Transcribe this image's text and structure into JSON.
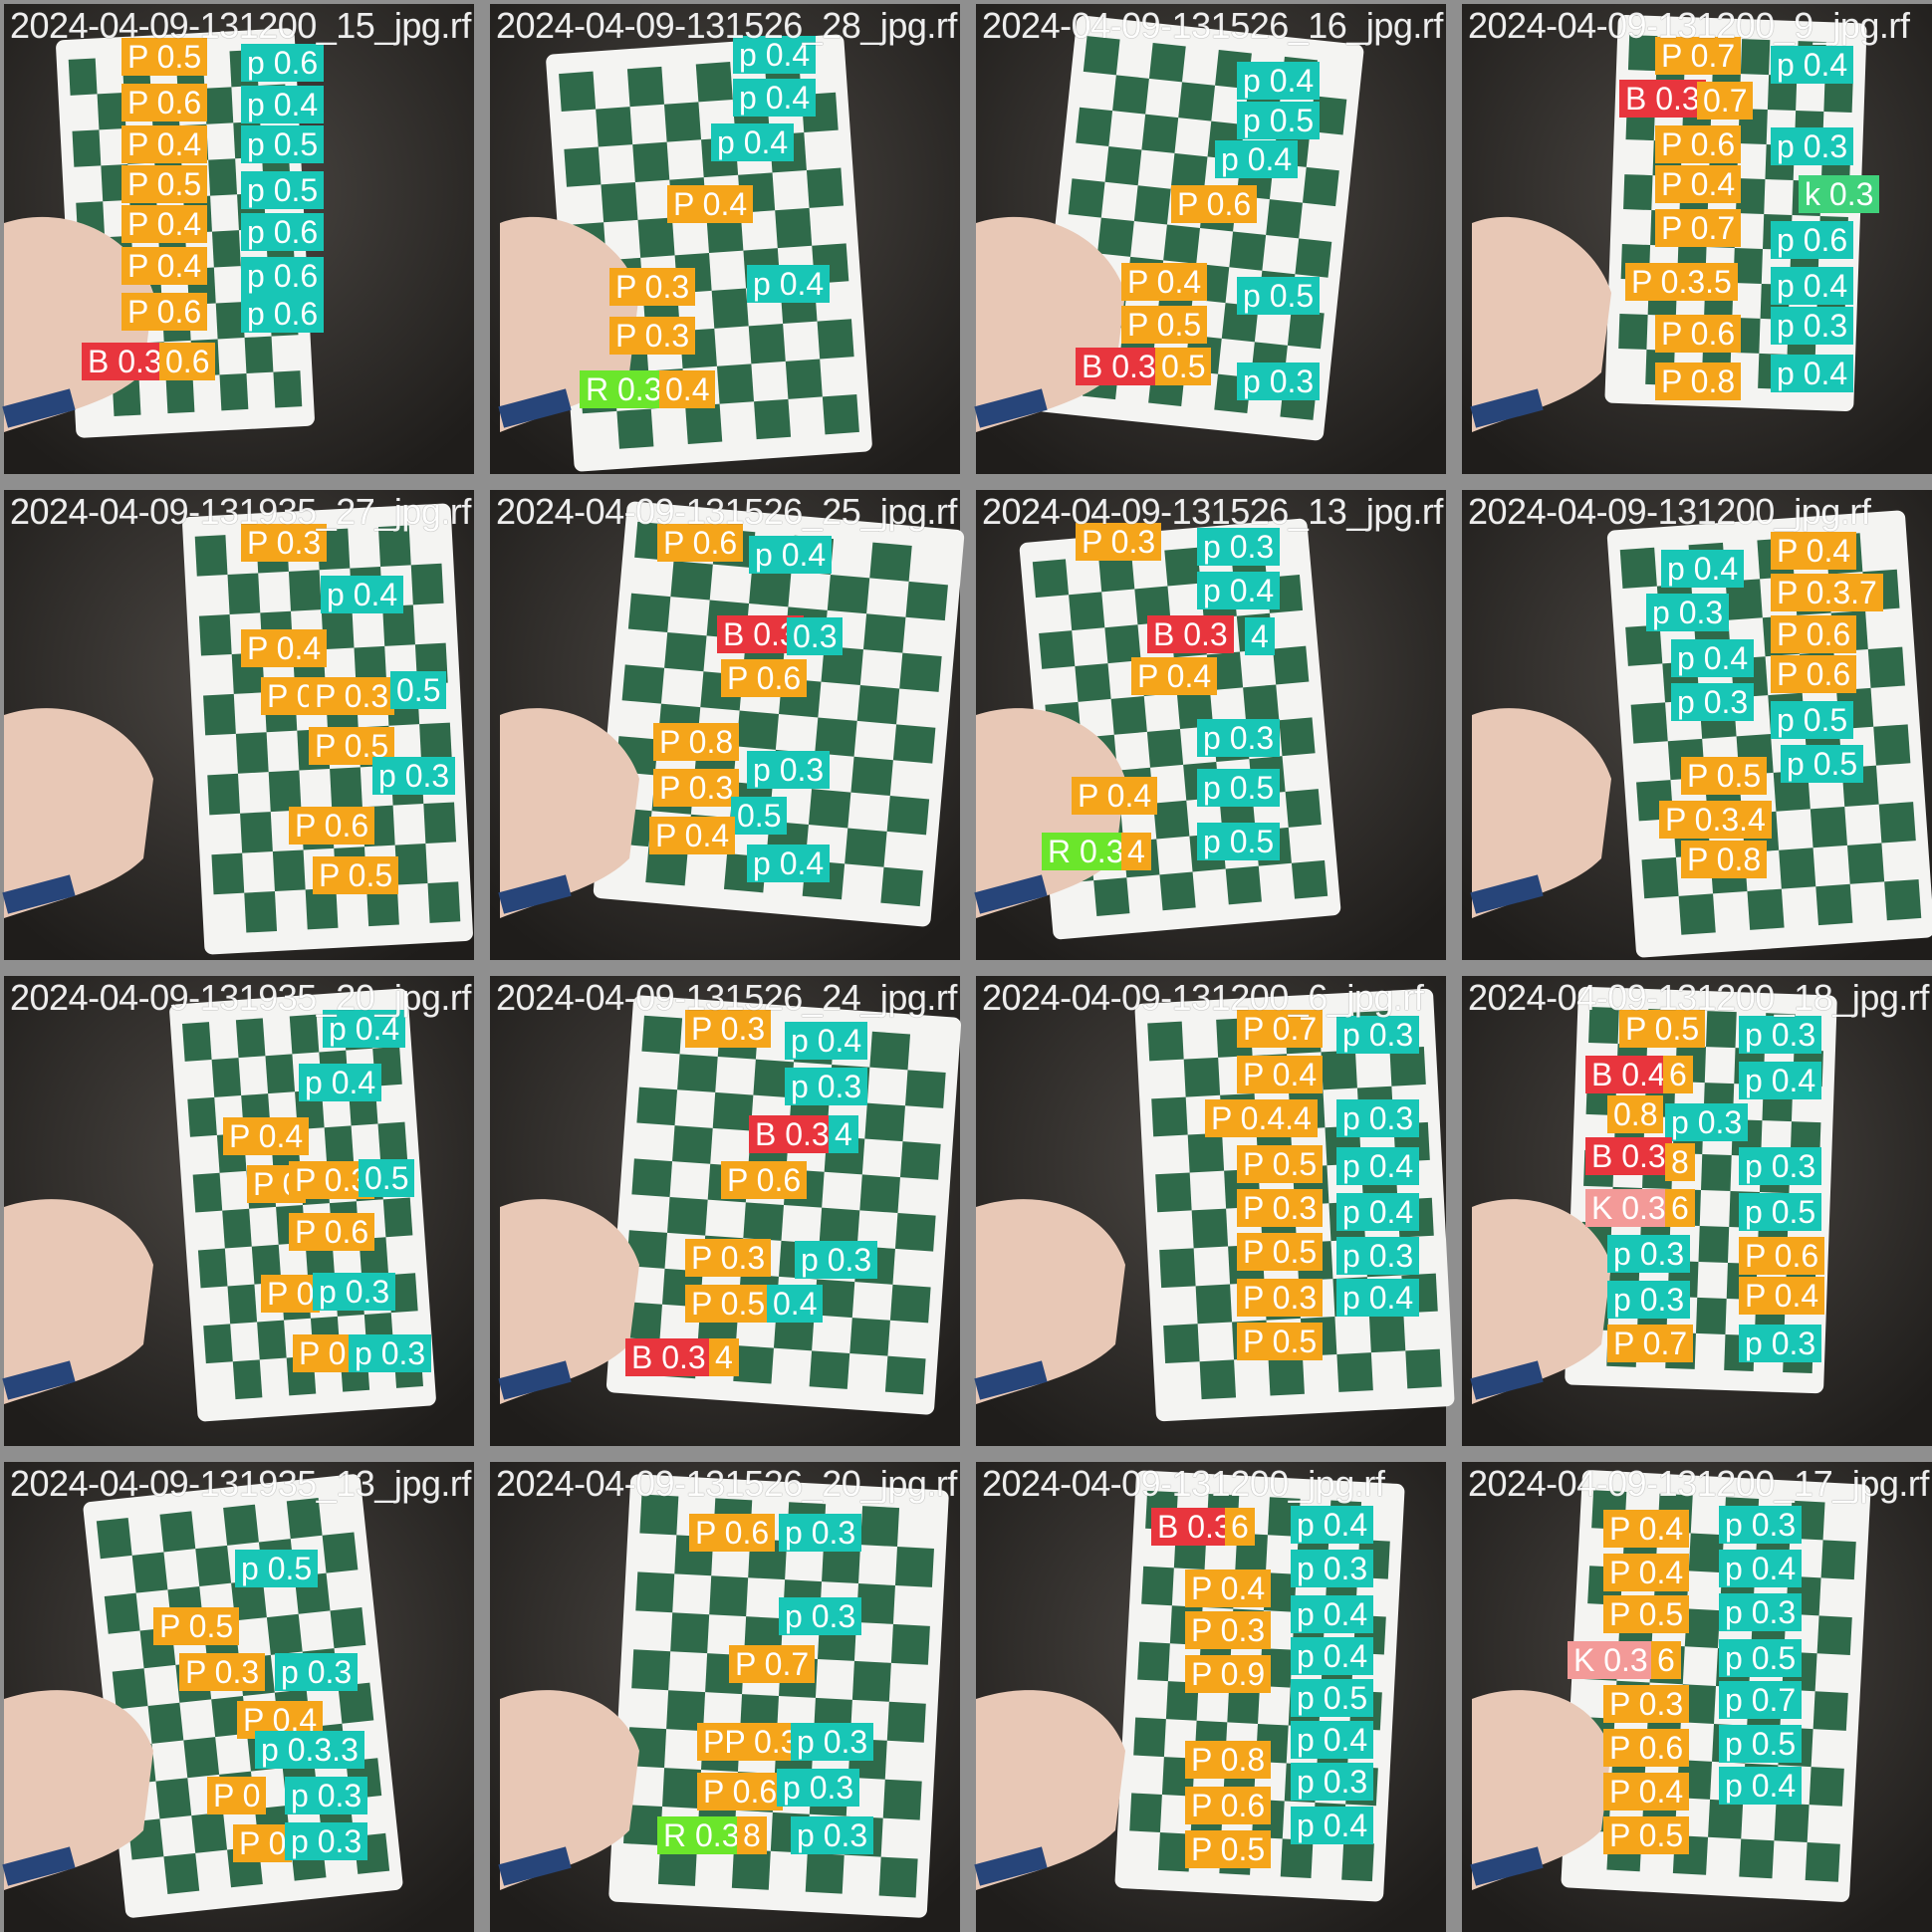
{
  "tiles": [
    {
      "filename": "2024-04-09-131200_15_jpg.rf",
      "detections": [
        {
          "label": "P 0.5",
          "cls": "P"
        },
        {
          "label": "p 0.6",
          "cls": "p"
        },
        {
          "label": "P 0.6",
          "cls": "P"
        },
        {
          "label": "p 0.4",
          "cls": "p"
        },
        {
          "label": "P 0.4",
          "cls": "P"
        },
        {
          "label": "p 0.5",
          "cls": "p"
        },
        {
          "label": "P 0.5",
          "cls": "P"
        },
        {
          "label": "p 0.5",
          "cls": "p"
        },
        {
          "label": "P 0.4",
          "cls": "P"
        },
        {
          "label": "p 0.6",
          "cls": "p"
        },
        {
          "label": "P 0.4",
          "cls": "P"
        },
        {
          "label": "p 0.6",
          "cls": "p"
        },
        {
          "label": "P 0.6",
          "cls": "P"
        },
        {
          "label": "p 0.6",
          "cls": "p"
        },
        {
          "label": "B 0.3",
          "cls": "B"
        },
        {
          "label": "0.6",
          "cls": "P"
        }
      ]
    },
    {
      "filename": "2024-04-09-131526_28_jpg.rf",
      "detections": [
        {
          "label": "p 0.4",
          "cls": "p"
        },
        {
          "label": "p 0.4",
          "cls": "p"
        },
        {
          "label": "p 0.4",
          "cls": "p"
        },
        {
          "label": "P 0.4",
          "cls": "P"
        },
        {
          "label": "p 0.4",
          "cls": "p"
        },
        {
          "label": "P 0.3",
          "cls": "P"
        },
        {
          "label": "P 0.3",
          "cls": "P"
        },
        {
          "label": "R 0.3",
          "cls": "R"
        },
        {
          "label": "0.4",
          "cls": "P"
        }
      ]
    },
    {
      "filename": "2024-04-09-131526_16_jpg.rf",
      "detections": [
        {
          "label": "p 0.4",
          "cls": "p"
        },
        {
          "label": "p 0.5",
          "cls": "p"
        },
        {
          "label": "p 0.4",
          "cls": "p"
        },
        {
          "label": "P 0.6",
          "cls": "P"
        },
        {
          "label": "P 0.4",
          "cls": "P"
        },
        {
          "label": "p 0.5",
          "cls": "p"
        },
        {
          "label": "P 0.5",
          "cls": "P"
        },
        {
          "label": "B 0.3",
          "cls": "B"
        },
        {
          "label": "0.5",
          "cls": "P"
        },
        {
          "label": "p 0.3",
          "cls": "p"
        }
      ]
    },
    {
      "filename": "2024-04-09-131200_9_jpg.rf",
      "detections": [
        {
          "label": "P 0.7",
          "cls": "P"
        },
        {
          "label": "p 0.4",
          "cls": "p"
        },
        {
          "label": "B 0.3",
          "cls": "B"
        },
        {
          "label": "0.7",
          "cls": "P"
        },
        {
          "label": "p 0.3",
          "cls": "p"
        },
        {
          "label": "P 0.6",
          "cls": "P"
        },
        {
          "label": "k 0.3",
          "cls": "k"
        },
        {
          "label": "P 0.4",
          "cls": "P"
        },
        {
          "label": "P 0.7",
          "cls": "P"
        },
        {
          "label": "p 0.6",
          "cls": "p"
        },
        {
          "label": "P 0.3.5",
          "cls": "P"
        },
        {
          "label": "p 0.4",
          "cls": "p"
        },
        {
          "label": "p 0.3",
          "cls": "p"
        },
        {
          "label": "P 0.6",
          "cls": "P"
        },
        {
          "label": "P 0.8",
          "cls": "P"
        },
        {
          "label": "p 0.4",
          "cls": "p"
        }
      ]
    },
    {
      "filename": "2024-04-09-131935_27_jpg.rf",
      "detections": [
        {
          "label": "P 0.3",
          "cls": "P"
        },
        {
          "label": "p 0.4",
          "cls": "p"
        },
        {
          "label": "P 0.4",
          "cls": "P"
        },
        {
          "label": "P 0",
          "cls": "P"
        },
        {
          "label": "P 0.3",
          "cls": "P"
        },
        {
          "label": "0.5",
          "cls": "p"
        },
        {
          "label": "P 0.5",
          "cls": "P"
        },
        {
          "label": "p 0.3",
          "cls": "p"
        },
        {
          "label": "P 0.6",
          "cls": "P"
        },
        {
          "label": "P 0.5",
          "cls": "P"
        }
      ]
    },
    {
      "filename": "2024-04-09-131526_25_jpg.rf",
      "detections": [
        {
          "label": "P 0.6",
          "cls": "P"
        },
        {
          "label": "p 0.4",
          "cls": "p"
        },
        {
          "label": "B 0.3",
          "cls": "B"
        },
        {
          "label": "0.3",
          "cls": "p"
        },
        {
          "label": "P 0.6",
          "cls": "P"
        },
        {
          "label": "P 0.8",
          "cls": "P"
        },
        {
          "label": "p 0.3",
          "cls": "p"
        },
        {
          "label": "P 0.3",
          "cls": "P"
        },
        {
          "label": "0.5",
          "cls": "p"
        },
        {
          "label": "P 0.4",
          "cls": "P"
        },
        {
          "label": "p 0.4",
          "cls": "p"
        }
      ]
    },
    {
      "filename": "2024-04-09-131526_13_jpg.rf",
      "detections": [
        {
          "label": "P 0.3",
          "cls": "P"
        },
        {
          "label": "p 0.3",
          "cls": "p"
        },
        {
          "label": "p 0.4",
          "cls": "p"
        },
        {
          "label": "B 0.3",
          "cls": "B"
        },
        {
          "label": "4",
          "cls": "p"
        },
        {
          "label": "P 0.4",
          "cls": "P"
        },
        {
          "label": "p 0.3",
          "cls": "p"
        },
        {
          "label": "P 0.4",
          "cls": "P"
        },
        {
          "label": "p 0.5",
          "cls": "p"
        },
        {
          "label": "R 0.3",
          "cls": "R"
        },
        {
          "label": "4",
          "cls": "P"
        },
        {
          "label": "p 0.5",
          "cls": "p"
        }
      ]
    },
    {
      "filename": "2024-04-09-131200_jpg.rf",
      "detections": [
        {
          "label": "p 0.4",
          "cls": "p"
        },
        {
          "label": "P 0.4",
          "cls": "P"
        },
        {
          "label": "p 0.3",
          "cls": "p"
        },
        {
          "label": "P 0.3.7",
          "cls": "P"
        },
        {
          "label": "p 0.4",
          "cls": "p"
        },
        {
          "label": "P 0.6",
          "cls": "P"
        },
        {
          "label": "p 0.3",
          "cls": "p"
        },
        {
          "label": "P 0.6",
          "cls": "P"
        },
        {
          "label": "p 0.5",
          "cls": "p"
        },
        {
          "label": "p 0.5",
          "cls": "p"
        },
        {
          "label": "P 0.5",
          "cls": "P"
        },
        {
          "label": "P 0.3.4",
          "cls": "P"
        },
        {
          "label": "P 0.8",
          "cls": "P"
        }
      ]
    },
    {
      "filename": "2024-04-09-131935_20_jpg.rf",
      "detections": [
        {
          "label": "p 0.4",
          "cls": "p"
        },
        {
          "label": "p 0.4",
          "cls": "p"
        },
        {
          "label": "P 0.4",
          "cls": "P"
        },
        {
          "label": "P 0",
          "cls": "P"
        },
        {
          "label": "P 0.3",
          "cls": "P"
        },
        {
          "label": "0.5",
          "cls": "p"
        },
        {
          "label": "P 0.6",
          "cls": "P"
        },
        {
          "label": "P 0",
          "cls": "P"
        },
        {
          "label": "p 0.3",
          "cls": "p"
        },
        {
          "label": "P 0",
          "cls": "P"
        },
        {
          "label": "p 0.3",
          "cls": "p"
        }
      ]
    },
    {
      "filename": "2024-04-09-131526_24_jpg.rf",
      "detections": [
        {
          "label": "P 0.3",
          "cls": "P"
        },
        {
          "label": "p 0.4",
          "cls": "p"
        },
        {
          "label": "p 0.3",
          "cls": "p"
        },
        {
          "label": "B 0.3",
          "cls": "B"
        },
        {
          "label": "4",
          "cls": "p"
        },
        {
          "label": "P 0.6",
          "cls": "P"
        },
        {
          "label": "P 0.3",
          "cls": "P"
        },
        {
          "label": "p 0.3",
          "cls": "p"
        },
        {
          "label": "P 0.5",
          "cls": "P"
        },
        {
          "label": "0.4",
          "cls": "p"
        },
        {
          "label": "B 0.3",
          "cls": "B"
        },
        {
          "label": "4",
          "cls": "P"
        }
      ]
    },
    {
      "filename": "2024-04-09-131200_6_jpg.rf",
      "detections": [
        {
          "label": "P 0.7",
          "cls": "P"
        },
        {
          "label": "p 0.3",
          "cls": "p"
        },
        {
          "label": "P 0.4",
          "cls": "P"
        },
        {
          "label": "P 0.4.4",
          "cls": "P"
        },
        {
          "label": "p 0.3",
          "cls": "p"
        },
        {
          "label": "P 0.5",
          "cls": "P"
        },
        {
          "label": "p 0.4",
          "cls": "p"
        },
        {
          "label": "P 0.3",
          "cls": "P"
        },
        {
          "label": "p 0.4",
          "cls": "p"
        },
        {
          "label": "P 0.5",
          "cls": "P"
        },
        {
          "label": "p 0.3",
          "cls": "p"
        },
        {
          "label": "P 0.3",
          "cls": "P"
        },
        {
          "label": "p 0.4",
          "cls": "p"
        },
        {
          "label": "P 0.5",
          "cls": "P"
        }
      ]
    },
    {
      "filename": "2024-04-09-131200_18_jpg.rf",
      "detections": [
        {
          "label": "P 0.5",
          "cls": "P"
        },
        {
          "label": "p 0.3",
          "cls": "p"
        },
        {
          "label": "B 0.4",
          "cls": "B"
        },
        {
          "label": "6",
          "cls": "P"
        },
        {
          "label": "p 0.4",
          "cls": "p"
        },
        {
          "label": "0.8",
          "cls": "P"
        },
        {
          "label": "p 0.3",
          "cls": "p"
        },
        {
          "label": "B 0.3",
          "cls": "B"
        },
        {
          "label": "8",
          "cls": "P"
        },
        {
          "label": "p 0.3",
          "cls": "p"
        },
        {
          "label": "K 0.3",
          "cls": "K"
        },
        {
          "label": "6",
          "cls": "P"
        },
        {
          "label": "p 0.5",
          "cls": "p"
        },
        {
          "label": "P 0.6",
          "cls": "P"
        },
        {
          "label": "p 0.3",
          "cls": "p"
        },
        {
          "label": "p 0.3",
          "cls": "p"
        },
        {
          "label": "P 0.4",
          "cls": "P"
        },
        {
          "label": "P 0.7",
          "cls": "P"
        },
        {
          "label": "p 0.3",
          "cls": "p"
        }
      ]
    },
    {
      "filename": "2024-04-09-131935_13_jpg.rf",
      "detections": [
        {
          "label": "p 0.5",
          "cls": "p"
        },
        {
          "label": "P 0.5",
          "cls": "P"
        },
        {
          "label": "P 0.3",
          "cls": "P"
        },
        {
          "label": "p 0.3",
          "cls": "p"
        },
        {
          "label": "P 0.4",
          "cls": "P"
        },
        {
          "label": "p 0.3.3",
          "cls": "p"
        },
        {
          "label": "P 0",
          "cls": "P"
        },
        {
          "label": "p 0.3",
          "cls": "p"
        },
        {
          "label": "P 0",
          "cls": "P"
        },
        {
          "label": "p 0.3",
          "cls": "p"
        }
      ]
    },
    {
      "filename": "2024-04-09-131526_20_jpg.rf",
      "detections": [
        {
          "label": "P 0.6",
          "cls": "P"
        },
        {
          "label": "p 0.3",
          "cls": "p"
        },
        {
          "label": "p 0.3",
          "cls": "p"
        },
        {
          "label": "P 0.7",
          "cls": "P"
        },
        {
          "label": "PP 0.3",
          "cls": "P"
        },
        {
          "label": "p 0.3",
          "cls": "p"
        },
        {
          "label": "P 0.6",
          "cls": "P"
        },
        {
          "label": "p 0.3",
          "cls": "p"
        },
        {
          "label": "R 0.3",
          "cls": "R"
        },
        {
          "label": "8",
          "cls": "P"
        },
        {
          "label": "p 0.3",
          "cls": "p"
        }
      ]
    },
    {
      "filename": "2024-04-09-131200_jpg.rf",
      "detections": [
        {
          "label": "B 0.3",
          "cls": "B"
        },
        {
          "label": "6",
          "cls": "P"
        },
        {
          "label": "p 0.4",
          "cls": "p"
        },
        {
          "label": "P 0.4",
          "cls": "P"
        },
        {
          "label": "p 0.3",
          "cls": "p"
        },
        {
          "label": "P 0.3",
          "cls": "P"
        },
        {
          "label": "p 0.4",
          "cls": "p"
        },
        {
          "label": "P 0.9",
          "cls": "P"
        },
        {
          "label": "p 0.4",
          "cls": "p"
        },
        {
          "label": "p 0.5",
          "cls": "p"
        },
        {
          "label": "P 0.8",
          "cls": "P"
        },
        {
          "label": "p 0.4",
          "cls": "p"
        },
        {
          "label": "P 0.6",
          "cls": "P"
        },
        {
          "label": "p 0.3",
          "cls": "p"
        },
        {
          "label": "P 0.5",
          "cls": "P"
        },
        {
          "label": "p 0.4",
          "cls": "p"
        }
      ]
    },
    {
      "filename": "2024-04-09-131200_17_jpg.rf",
      "detections": [
        {
          "label": "P 0.4",
          "cls": "P"
        },
        {
          "label": "p 0.3",
          "cls": "p"
        },
        {
          "label": "P 0.4",
          "cls": "P"
        },
        {
          "label": "p 0.4",
          "cls": "p"
        },
        {
          "label": "P 0.5",
          "cls": "P"
        },
        {
          "label": "p 0.3",
          "cls": "p"
        },
        {
          "label": "K 0.3",
          "cls": "K"
        },
        {
          "label": "6",
          "cls": "P"
        },
        {
          "label": "p 0.5",
          "cls": "p"
        },
        {
          "label": "P 0.3",
          "cls": "P"
        },
        {
          "label": "p 0.7",
          "cls": "p"
        },
        {
          "label": "P 0.6",
          "cls": "P"
        },
        {
          "label": "p 0.5",
          "cls": "p"
        },
        {
          "label": "P 0.4",
          "cls": "P"
        },
        {
          "label": "p 0.4",
          "cls": "p"
        },
        {
          "label": "P 0.5",
          "cls": "P"
        }
      ]
    }
  ]
}
